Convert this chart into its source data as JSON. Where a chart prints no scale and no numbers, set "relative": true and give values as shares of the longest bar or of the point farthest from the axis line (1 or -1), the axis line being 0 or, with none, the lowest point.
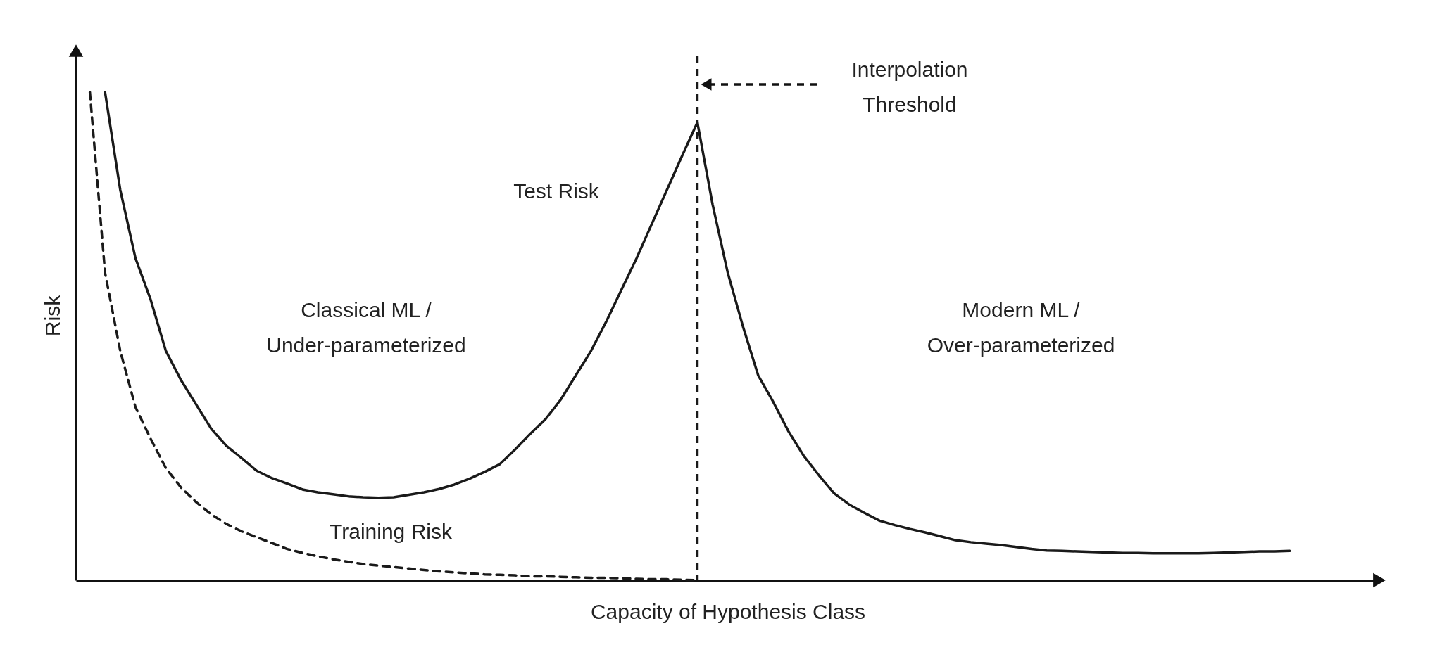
{
  "chart_data": {
    "type": "line",
    "relative": true,
    "xlabel": "Capacity of Hypothesis Class",
    "ylabel": "Risk",
    "categories": [
      null,
      null,
      null,
      null,
      null,
      null,
      null,
      null,
      null,
      null,
      null,
      null,
      null,
      null,
      null,
      null,
      null,
      null,
      null,
      null,
      null,
      null,
      null,
      null,
      null,
      null,
      null,
      null,
      null,
      null,
      null,
      null,
      null,
      null,
      null,
      null,
      null,
      null,
      null,
      null,
      null,
      null,
      null,
      null,
      null,
      null,
      null,
      null,
      null,
      null,
      null,
      null,
      null,
      null,
      null,
      null,
      null,
      null,
      null,
      null,
      null,
      null,
      null,
      null,
      null,
      null,
      null,
      null,
      null,
      null,
      null,
      null,
      null,
      null,
      null,
      null,
      null,
      null,
      null,
      null
    ],
    "tick_labels": false,
    "grid": false,
    "marker": "none",
    "series": [
      {
        "name": "Test Risk",
        "color": "#1a1a1a",
        "line_style": "solid",
        "values": [
          null,
          1.0,
          0.8,
          0.66,
          0.575,
          0.47,
          0.41,
          0.36,
          0.31,
          0.275,
          0.25,
          0.224,
          0.209,
          0.198,
          0.186,
          0.18,
          0.176,
          0.172,
          0.17,
          0.169,
          0.17,
          0.175,
          0.18,
          0.187,
          0.196,
          0.208,
          0.222,
          0.238,
          0.268,
          0.3,
          0.33,
          0.37,
          0.42,
          0.47,
          0.53,
          0.595,
          0.66,
          0.73,
          0.8,
          0.87,
          0.938,
          0.77,
          0.63,
          0.52,
          0.42,
          0.365,
          0.305,
          0.255,
          0.215,
          0.178,
          0.155,
          0.138,
          0.122,
          0.113,
          0.105,
          0.098,
          0.09,
          0.082,
          0.078,
          0.075,
          0.072,
          0.068,
          0.064,
          0.061,
          0.06,
          0.059,
          0.058,
          0.057,
          0.056,
          0.056,
          0.055,
          0.055,
          0.055,
          0.055,
          0.056,
          0.057,
          0.058,
          0.059,
          0.059,
          0.06
        ]
      },
      {
        "name": "Training Risk",
        "color": "#1a1a1a",
        "line_style": "dashed",
        "values": [
          1.0,
          0.63,
          0.47,
          0.355,
          0.29,
          0.23,
          0.19,
          0.16,
          0.135,
          0.115,
          0.1,
          0.088,
          0.076,
          0.064,
          0.056,
          0.049,
          0.043,
          0.038,
          0.033,
          0.03,
          0.027,
          0.024,
          0.021,
          0.018,
          0.016,
          0.014,
          0.012,
          0.011,
          0.01,
          0.008,
          0.008,
          0.007,
          0.006,
          0.005,
          0.005,
          0.004,
          0.003,
          0.002,
          0.002,
          0.001,
          0.0,
          null,
          null,
          null,
          null,
          null,
          null,
          null,
          null,
          null,
          null,
          null,
          null,
          null,
          null,
          null,
          null,
          null,
          null,
          null,
          null,
          null,
          null,
          null,
          null,
          null,
          null,
          null,
          null,
          null,
          null,
          null,
          null,
          null,
          null,
          null,
          null,
          null,
          null,
          null
        ]
      }
    ],
    "ref_lines": [
      {
        "axis": "x",
        "label": "Interpolation Threshold",
        "color": "#1a1a1a",
        "line_style": "dashed"
      }
    ],
    "annotations": [
      "Classical ML / Under-parameterized",
      "Modern ML / Over-parameterized"
    ]
  }
}
